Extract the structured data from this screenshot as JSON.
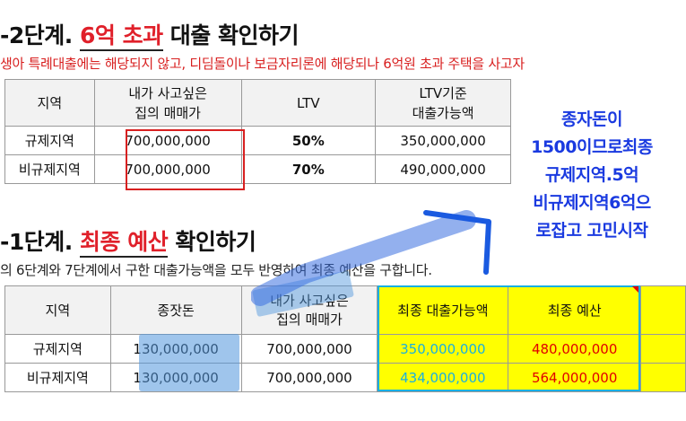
{
  "section1": {
    "heading_prefix": "-2단계. ",
    "heading_red": "6억 초과",
    "heading_suffix": " 대출 확인하기",
    "note": "생아 특례대출에는 해당되지 않고, 디딤돌이나 보금자리론에 해당되나 6억원 초과 주택을 사고자",
    "table": {
      "headers": [
        "지역",
        "내가 사고싶은\n집의 매매가",
        "LTV",
        "LTV기준\n대출가능액"
      ],
      "rows": [
        {
          "region": "규제지역",
          "price": "700,000,000",
          "ltv": "50%",
          "loan": "350,000,000"
        },
        {
          "region": "비규제지역",
          "price": "700,000,000",
          "ltv": "70%",
          "loan": "490,000,000"
        }
      ]
    }
  },
  "section2": {
    "heading_prefix": "-1단계. ",
    "heading_red": "최종 예산",
    "heading_suffix": " 확인하기",
    "note": "의 6단계와 7단계에서 구한 대출가능액을 모두 반영하여 최종 예산을 구합니다.",
    "table": {
      "headers": [
        "지역",
        "종잣돈",
        "내가 사고싶은\n집의 매매가",
        "최종 대출가능액",
        "최종 예산"
      ],
      "rows": [
        {
          "region": "규제지역",
          "seed": "130,000,000",
          "price": "700,000,000",
          "final_loan": "350,000,000",
          "budget": "480,000,000"
        },
        {
          "region": "비규제지역",
          "seed": "130,000,000",
          "price": "700,000,000",
          "final_loan": "434,000,000",
          "budget": "564,000,000"
        }
      ]
    }
  },
  "annotation": {
    "lines": [
      "종자돈이",
      "1500이므로최종",
      "규제지역.5억",
      "비규제지역6억으",
      "로잡고  고민시작"
    ],
    "color": "#1a3ae0"
  },
  "colors": {
    "heading_red": "#e0202a",
    "highlight_yellow": "#ffff00",
    "loan_cyan": "#1ab0e0",
    "budget_red": "#e00000",
    "handwriting_blue": "#1a3ae0"
  }
}
